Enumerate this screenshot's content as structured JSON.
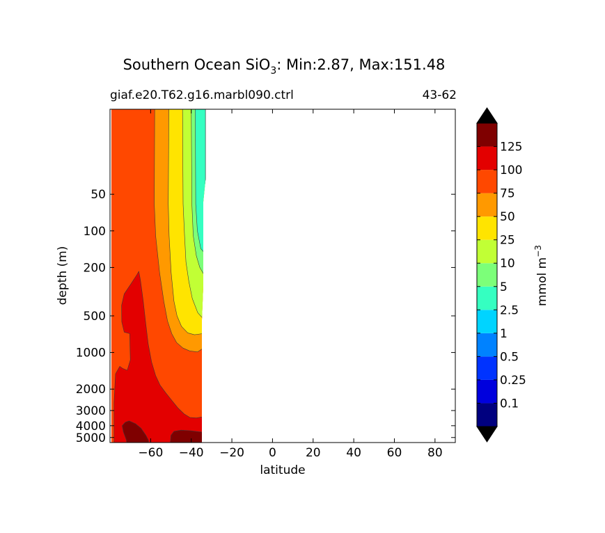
{
  "chart_data": {
    "type": "contour",
    "title_parts": {
      "pre": "Southern Ocean SiO",
      "sub": "3",
      "post": ": Min:2.87, Max:151.48"
    },
    "subtitle_left": "giaf.e20.T62.g16.marbl090.ctrl",
    "subtitle_right": "43-62",
    "xlabel": "latitude",
    "ylabel": "depth (m)",
    "xlim": [
      -80,
      90
    ],
    "ylim": [
      5500,
      10
    ],
    "x_ticks": [
      -60,
      -40,
      -20,
      0,
      20,
      40,
      60,
      80
    ],
    "x_tick_labels": [
      "−60",
      "−40",
      "−20",
      "0",
      "20",
      "40",
      "60",
      "80"
    ],
    "y_ticks": [
      50,
      100,
      200,
      500,
      1000,
      2000,
      3000,
      4000,
      5000
    ],
    "y_tick_labels": [
      "50",
      "100",
      "200",
      "500",
      "1000",
      "2000",
      "3000",
      "4000",
      "5000"
    ],
    "colorbar": {
      "label_main": "mmol m",
      "label_sup": "−3",
      "levels": [
        "0.1",
        "0.25",
        "0.5",
        "1",
        "2.5",
        "5",
        "10",
        "25",
        "50",
        "75",
        "100",
        "125"
      ],
      "colors": [
        "#00007f",
        "#0000dd",
        "#0033ff",
        "#0082ff",
        "#00d4ff",
        "#35ffc1",
        "#7cff79",
        "#c1ff35",
        "#ffe400",
        "#ff9900",
        "#ff4800",
        "#e30000",
        "#7f0000"
      ],
      "extend_color": "#000000"
    },
    "regions": [
      {
        "range": "75-100",
        "boundary": [
          [
            -80,
            10
          ],
          [
            -33,
            10
          ],
          [
            -33,
            5500
          ],
          [
            -80,
            5500
          ]
        ]
      },
      {
        "range": "50-75",
        "boundary": [
          [
            -80,
            10
          ],
          [
            -58,
            10
          ],
          [
            -58.2,
            60
          ],
          [
            -57.5,
            110
          ],
          [
            -55.6,
            220
          ],
          [
            -53.5,
            380
          ],
          [
            -51.7,
            550
          ],
          [
            -49.6,
            700
          ],
          [
            -47.2,
            830
          ],
          [
            -44,
            920
          ],
          [
            -40.8,
            970
          ],
          [
            -36.9,
            990
          ],
          [
            -34.5,
            930
          ],
          [
            -33,
            870
          ],
          [
            -33,
            10
          ]
        ]
      },
      {
        "range": "25-50",
        "boundary": [
          [
            -51,
            10
          ],
          [
            -51.3,
            60
          ],
          [
            -50.9,
            110
          ],
          [
            -49.9,
            220
          ],
          [
            -48.5,
            380
          ],
          [
            -47,
            500
          ],
          [
            -44.8,
            610
          ],
          [
            -41.7,
            690
          ],
          [
            -38.4,
            715
          ],
          [
            -34.5,
            700
          ],
          [
            -33,
            680
          ],
          [
            -33,
            10
          ]
        ]
      },
      {
        "range": "10-25",
        "boundary": [
          [
            -44.3,
            10
          ],
          [
            -44,
            60
          ],
          [
            -43.3,
            110
          ],
          [
            -42.6,
            180
          ],
          [
            -41.2,
            260
          ],
          [
            -39.5,
            360
          ],
          [
            -36.8,
            470
          ],
          [
            -34.5,
            520
          ],
          [
            -33,
            540
          ],
          [
            -33,
            10
          ]
        ]
      },
      {
        "range": "5-10",
        "boundary": [
          [
            -40,
            10
          ],
          [
            -39.7,
            60
          ],
          [
            -39,
            110
          ],
          [
            -37.5,
            160
          ],
          [
            -35.8,
            200
          ],
          [
            -33,
            240
          ],
          [
            -33,
            10
          ]
        ]
      },
      {
        "range": "2.5-5",
        "boundary": [
          [
            -38,
            10
          ],
          [
            -37.8,
            60
          ],
          [
            -37,
            100
          ],
          [
            -35.3,
            140
          ],
          [
            -33,
            155
          ],
          [
            -33,
            10
          ]
        ]
      },
      {
        "range": "100-125",
        "boundary": [
          [
            -78,
            5500
          ],
          [
            -78,
            2600
          ],
          [
            -77.3,
            1500
          ],
          [
            -75.2,
            1300
          ],
          [
            -73.8,
            1350
          ],
          [
            -71.5,
            1400
          ],
          [
            -70,
            1150
          ],
          [
            -70.3,
            700
          ],
          [
            -73,
            680
          ],
          [
            -74.2,
            560
          ],
          [
            -74.3,
            410
          ],
          [
            -73,
            330
          ],
          [
            -69.5,
            270
          ],
          [
            -66.8,
            230
          ],
          [
            -65.8,
            215
          ],
          [
            -65,
            255
          ],
          [
            -63.6,
            380
          ],
          [
            -62.5,
            560
          ],
          [
            -61.2,
            850
          ],
          [
            -59.5,
            1200
          ],
          [
            -57.5,
            1550
          ],
          [
            -55.4,
            1850
          ],
          [
            -52.5,
            2150
          ],
          [
            -49.4,
            2500
          ],
          [
            -46.6,
            2850
          ],
          [
            -43.5,
            3200
          ],
          [
            -40.7,
            3420
          ],
          [
            -37.5,
            3450
          ],
          [
            -34.2,
            3380
          ],
          [
            -33,
            3330
          ],
          [
            -33,
            5500
          ]
        ]
      },
      {
        "range": "125-150",
        "boundary": [
          [
            -74,
            4000
          ],
          [
            -72.5,
            3750
          ],
          [
            -70.6,
            3650
          ],
          [
            -67.5,
            3850
          ],
          [
            -64.7,
            4200
          ],
          [
            -62.3,
            4800
          ],
          [
            -61.1,
            5250
          ],
          [
            -61,
            5500
          ],
          [
            -71.7,
            5500
          ],
          [
            -72,
            5200
          ],
          [
            -73.4,
            4500
          ]
        ]
      },
      {
        "range": "125-150",
        "boundary": [
          [
            -50.3,
            5500
          ],
          [
            -50,
            4800
          ],
          [
            -48.5,
            4450
          ],
          [
            -45,
            4350
          ],
          [
            -40.3,
            4400
          ],
          [
            -35.5,
            4500
          ],
          [
            -33,
            4550
          ],
          [
            -33,
            5500
          ]
        ]
      }
    ],
    "grid": false
  }
}
